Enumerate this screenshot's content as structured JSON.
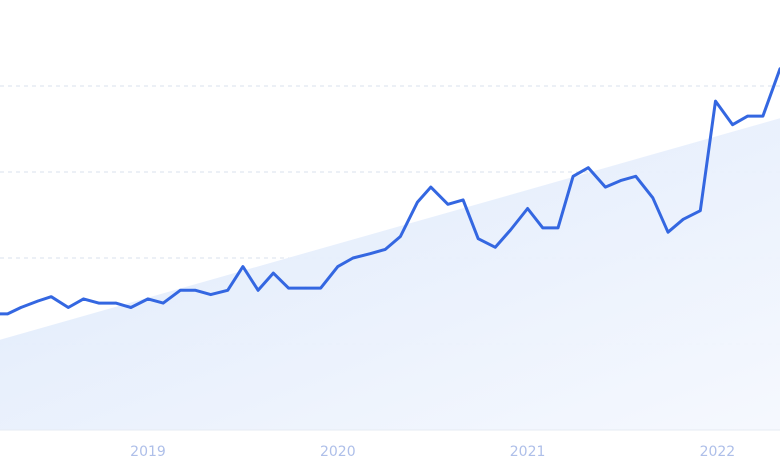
{
  "chart_data": {
    "type": "line",
    "x_ticks": [
      "2019",
      "2020",
      "2021",
      "2022"
    ],
    "x_tick_positions": [
      2019.0,
      2020.0,
      2021.0,
      2022.0
    ],
    "xlim": [
      2018.22,
      2022.33
    ],
    "ylim": [
      0,
      100
    ],
    "grid": true,
    "y_gridlines": [
      20,
      40,
      60,
      80
    ],
    "series": [
      {
        "values": [
          [
            2018.22,
            27.0
          ],
          [
            2018.26,
            27.0
          ],
          [
            2018.33,
            28.5
          ],
          [
            2018.42,
            30.0
          ],
          [
            2018.49,
            31.0
          ],
          [
            2018.58,
            28.5
          ],
          [
            2018.66,
            30.5
          ],
          [
            2018.74,
            29.5
          ],
          [
            2018.83,
            29.5
          ],
          [
            2018.91,
            28.5
          ],
          [
            2019.0,
            30.5
          ],
          [
            2019.08,
            29.5
          ],
          [
            2019.17,
            32.5
          ],
          [
            2019.25,
            32.5
          ],
          [
            2019.33,
            31.5
          ],
          [
            2019.42,
            32.5
          ],
          [
            2019.5,
            38.0
          ],
          [
            2019.58,
            32.5
          ],
          [
            2019.66,
            36.5
          ],
          [
            2019.74,
            33.0
          ],
          [
            2019.83,
            33.0
          ],
          [
            2019.91,
            33.0
          ],
          [
            2020.0,
            38.0
          ],
          [
            2020.08,
            40.0
          ],
          [
            2020.17,
            41.0
          ],
          [
            2020.25,
            42.0
          ],
          [
            2020.33,
            45.0
          ],
          [
            2020.42,
            53.0
          ],
          [
            2020.49,
            56.5
          ],
          [
            2020.58,
            52.5
          ],
          [
            2020.66,
            53.5
          ],
          [
            2020.74,
            44.5
          ],
          [
            2020.83,
            42.5
          ],
          [
            2020.91,
            46.5
          ],
          [
            2021.0,
            51.5
          ],
          [
            2021.08,
            47.0
          ],
          [
            2021.16,
            47.0
          ],
          [
            2021.24,
            59.0
          ],
          [
            2021.32,
            61.0
          ],
          [
            2021.41,
            56.5
          ],
          [
            2021.49,
            58.0
          ],
          [
            2021.57,
            59.0
          ],
          [
            2021.66,
            54.0
          ],
          [
            2021.74,
            46.0
          ],
          [
            2021.82,
            49.0
          ],
          [
            2021.91,
            51.0
          ],
          [
            2021.99,
            76.5
          ],
          [
            2022.08,
            71.0
          ],
          [
            2022.16,
            73.0
          ],
          [
            2022.24,
            73.0
          ],
          [
            2022.33,
            84.0
          ]
        ],
        "color": "#3467e1"
      }
    ],
    "trend_fill": {
      "from": [
        2018.22,
        21.0
      ],
      "to": [
        2022.33,
        72.5
      ],
      "color": "#dce8fb"
    }
  }
}
